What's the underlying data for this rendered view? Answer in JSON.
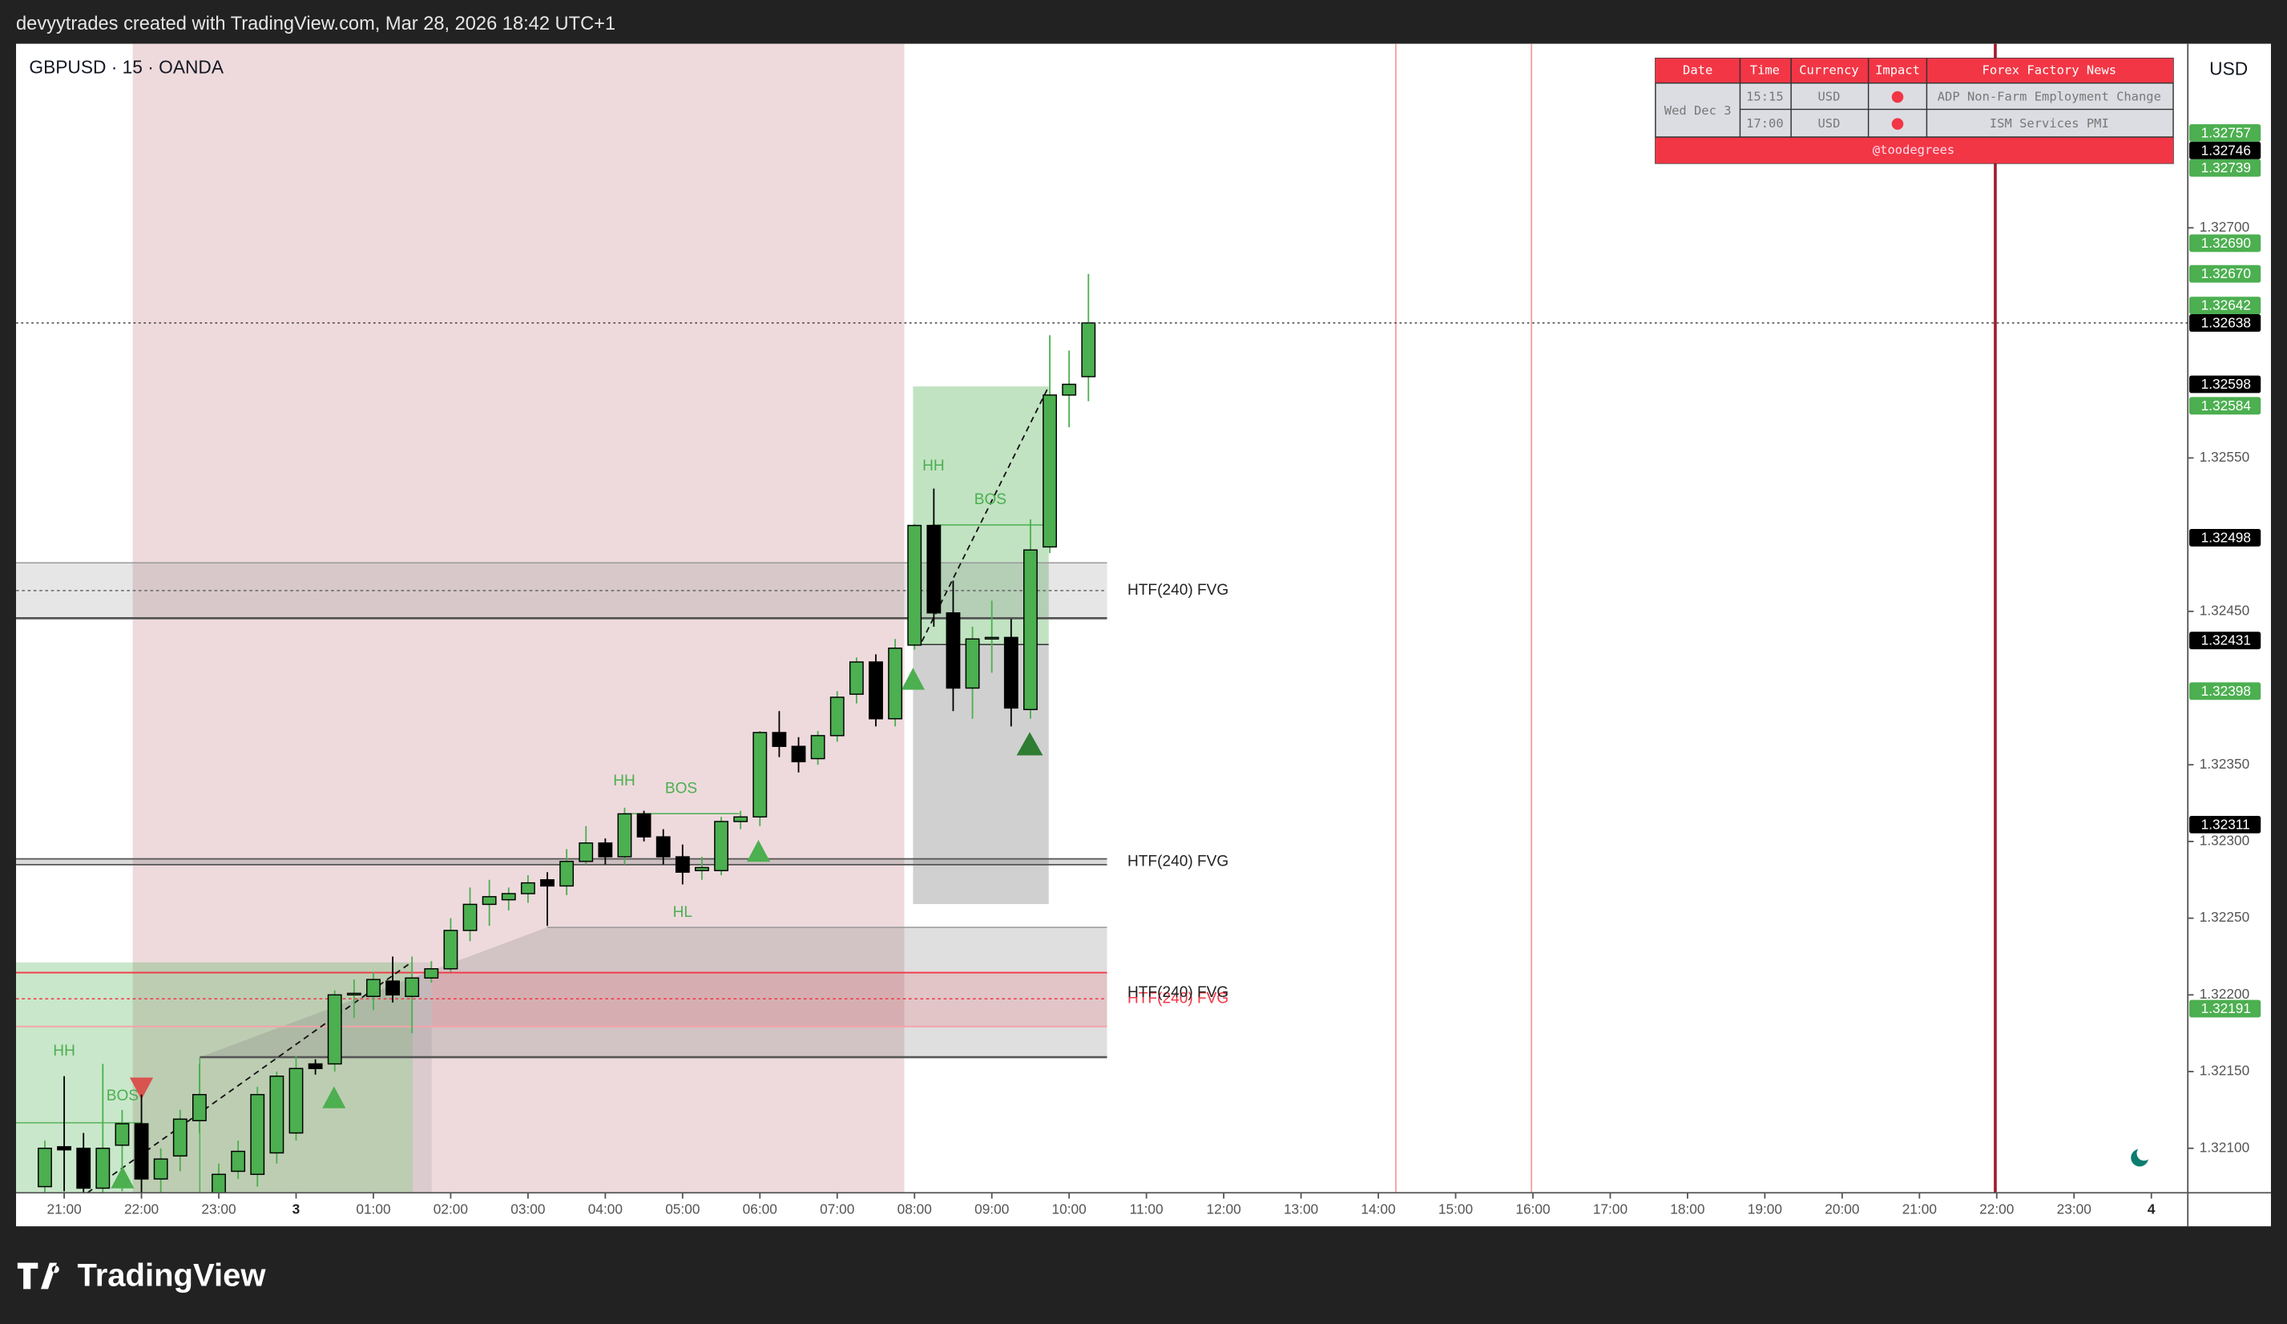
{
  "header": {
    "caption": "devyytrades created with TradingView.com, Mar 28, 2026 18:42 UTC+1",
    "symbol": "GBPUSD · 15 · OANDA",
    "currency": "USD"
  },
  "chart_data": {
    "type": "candlestick",
    "x": [
      "20:45",
      "21:00",
      "21:15",
      "21:30",
      "21:45",
      "22:00",
      "22:15",
      "22:30",
      "22:45",
      "23:00",
      "23:15",
      "23:30",
      "23:45",
      "00:00",
      "00:15",
      "00:30",
      "00:45",
      "01:00",
      "01:15",
      "01:30",
      "01:45",
      "02:00",
      "02:15",
      "02:30",
      "02:45",
      "03:00",
      "03:15",
      "03:30",
      "03:45",
      "04:00",
      "04:15",
      "04:30",
      "04:45",
      "05:00",
      "05:15",
      "05:30",
      "05:45",
      "06:00",
      "06:15",
      "06:30",
      "06:45",
      "07:00",
      "07:15",
      "07:30",
      "07:45",
      "08:00",
      "08:15",
      "08:30",
      "08:45",
      "09:00",
      "09:15",
      "09:30",
      "09:45",
      "10:00",
      "10:15"
    ],
    "open": [
      1.32075,
      1.32101,
      1.321,
      1.32074,
      1.32102,
      1.32116,
      1.3208,
      1.32095,
      1.32118,
      1.32071,
      1.32085,
      1.32083,
      1.32097,
      1.3211,
      1.32155,
      1.32155,
      1.322,
      1.32199,
      1.32209,
      1.32199,
      1.32211,
      1.32217,
      1.32242,
      1.32259,
      1.32262,
      1.32266,
      1.32275,
      1.32271,
      1.32287,
      1.32299,
      1.3229,
      1.32318,
      1.32303,
      1.3229,
      1.32281,
      1.32281,
      1.32313,
      1.32316,
      1.32371,
      1.32362,
      1.32354,
      1.32369,
      1.32396,
      1.32417,
      1.3238,
      1.32428,
      1.32506,
      1.32449,
      1.324,
      1.32432,
      1.32433,
      1.32386,
      1.32492,
      1.32591,
      1.32603
    ],
    "high": [
      1.32105,
      1.32147,
      1.3211,
      1.32155,
      1.32125,
      1.32135,
      1.321,
      1.32125,
      1.32155,
      1.3209,
      1.32105,
      1.3214,
      1.3215,
      1.3216,
      1.32158,
      1.32203,
      1.3221,
      1.32215,
      1.32225,
      1.32225,
      1.32222,
      1.3225,
      1.3227,
      1.32275,
      1.3227,
      1.32278,
      1.3228,
      1.32295,
      1.3231,
      1.32302,
      1.32322,
      1.3232,
      1.32308,
      1.32298,
      1.3229,
      1.32316,
      1.3232,
      1.32372,
      1.32385,
      1.32368,
      1.32372,
      1.32398,
      1.3242,
      1.32422,
      1.32432,
      1.32507,
      1.3253,
      1.3247,
      1.3244,
      1.32457,
      1.32445,
      1.3251,
      1.3263,
      1.3262,
      1.3267
    ],
    "low": [
      1.3207,
      1.32072,
      1.32068,
      1.3207,
      1.32072,
      1.32068,
      1.3207,
      1.32085,
      1.3211,
      1.32068,
      1.3208,
      1.32075,
      1.3209,
      1.32105,
      1.32148,
      1.3215,
      1.32185,
      1.3219,
      1.32195,
      1.32175,
      1.32208,
      1.32215,
      1.32235,
      1.32245,
      1.32255,
      1.3226,
      1.32245,
      1.32265,
      1.32285,
      1.32285,
      1.32285,
      1.323,
      1.32285,
      1.32272,
      1.32275,
      1.32278,
      1.32308,
      1.3231,
      1.32355,
      1.32345,
      1.3235,
      1.32365,
      1.3239,
      1.32375,
      1.32375,
      1.32425,
      1.3244,
      1.32385,
      1.3238,
      1.3241,
      1.32375,
      1.3238,
      1.32488,
      1.3257,
      1.32587
    ],
    "close": [
      1.321,
      1.32099,
      1.32074,
      1.321,
      1.32116,
      1.3208,
      1.32093,
      1.32119,
      1.32135,
      1.32083,
      1.32098,
      1.32135,
      1.32147,
      1.32152,
      1.32152,
      1.322,
      1.32201,
      1.3221,
      1.322,
      1.32211,
      1.32217,
      1.32242,
      1.32259,
      1.32264,
      1.32266,
      1.32273,
      1.32271,
      1.32287,
      1.32299,
      1.3229,
      1.32318,
      1.32303,
      1.3229,
      1.3228,
      1.32283,
      1.32313,
      1.32316,
      1.32371,
      1.32362,
      1.32352,
      1.32369,
      1.32394,
      1.32417,
      1.3238,
      1.32426,
      1.32506,
      1.32449,
      1.324,
      1.32432,
      1.32433,
      1.32387,
      1.3249,
      1.32591,
      1.32598,
      1.32638
    ],
    "up_color": "#4caf50",
    "down_color": "#000000",
    "ylim": [
      1.32071,
      1.3282
    ],
    "yticks": [
      {
        "value": 1.327,
        "label": "1.32700"
      },
      {
        "value": 1.3255,
        "label": "1.32550"
      },
      {
        "value": 1.3245,
        "label": "1.32450"
      },
      {
        "value": 1.3235,
        "label": "1.32350"
      },
      {
        "value": 1.323,
        "label": "1.32300"
      },
      {
        "value": 1.3225,
        "label": "1.32250"
      },
      {
        "value": 1.322,
        "label": "1.32200"
      },
      {
        "value": 1.3215,
        "label": "1.32150"
      },
      {
        "value": 1.321,
        "label": "1.32100"
      }
    ],
    "xticks": [
      "21:00",
      "22:00",
      "23:00",
      "3",
      "01:00",
      "02:00",
      "03:00",
      "04:00",
      "05:00",
      "06:00",
      "07:00",
      "08:00",
      "09:00",
      "10:00",
      "11:00",
      "12:00",
      "13:00",
      "14:00",
      "15:00",
      "16:00",
      "17:00",
      "18:00",
      "19:00",
      "20:00",
      "21:00",
      "22:00",
      "23:00",
      "4"
    ],
    "price_tags": [
      {
        "value": 1.32757,
        "label": "1.32757",
        "color": "#4caf50"
      },
      {
        "value": 1.32746,
        "label": "1.32746",
        "color": "#000000"
      },
      {
        "value": 1.32739,
        "label": "1.32739",
        "color": "#4caf50"
      },
      {
        "value": 1.3269,
        "label": "1.32690",
        "color": "#4caf50"
      },
      {
        "value": 1.3267,
        "label": "1.32670",
        "color": "#4caf50"
      },
      {
        "value": 1.32642,
        "label": "1.32642",
        "color": "#4caf50"
      },
      {
        "value": 1.32638,
        "label": "1.32638",
        "color": "#000000"
      },
      {
        "value": 1.32598,
        "label": "1.32598",
        "color": "#000000"
      },
      {
        "value": 1.32584,
        "label": "1.32584",
        "color": "#4caf50"
      },
      {
        "value": 1.32498,
        "label": "1.32498",
        "color": "#000000"
      },
      {
        "value": 1.32431,
        "label": "1.32431",
        "color": "#000000"
      },
      {
        "value": 1.32398,
        "label": "1.32398",
        "color": "#4caf50"
      },
      {
        "value": 1.32311,
        "label": "1.32311",
        "color": "#000000"
      },
      {
        "value": 1.32191,
        "label": "1.32191",
        "color": "#4caf50"
      }
    ],
    "annotations": {
      "structure": [
        "HH",
        "BOS",
        "HH",
        "BOS",
        "HL",
        "HH",
        "BOS"
      ],
      "fvg": [
        "HTF(240) FVG",
        "HTF(240) FVG",
        "HTF(240) FVG",
        "HTF(240) FVG"
      ]
    }
  },
  "news_table": {
    "header": [
      "Date",
      "Time",
      "Currency",
      "Impact",
      "Forex Factory News"
    ],
    "date": "Wed Dec 3",
    "rows": [
      [
        "15:15",
        "USD",
        "ADP Non-Farm Employment Change"
      ],
      [
        "17:00",
        "USD",
        "ISM Services PMI"
      ]
    ],
    "footer": "@toodegrees"
  },
  "footer": {
    "brand": "TradingView"
  }
}
